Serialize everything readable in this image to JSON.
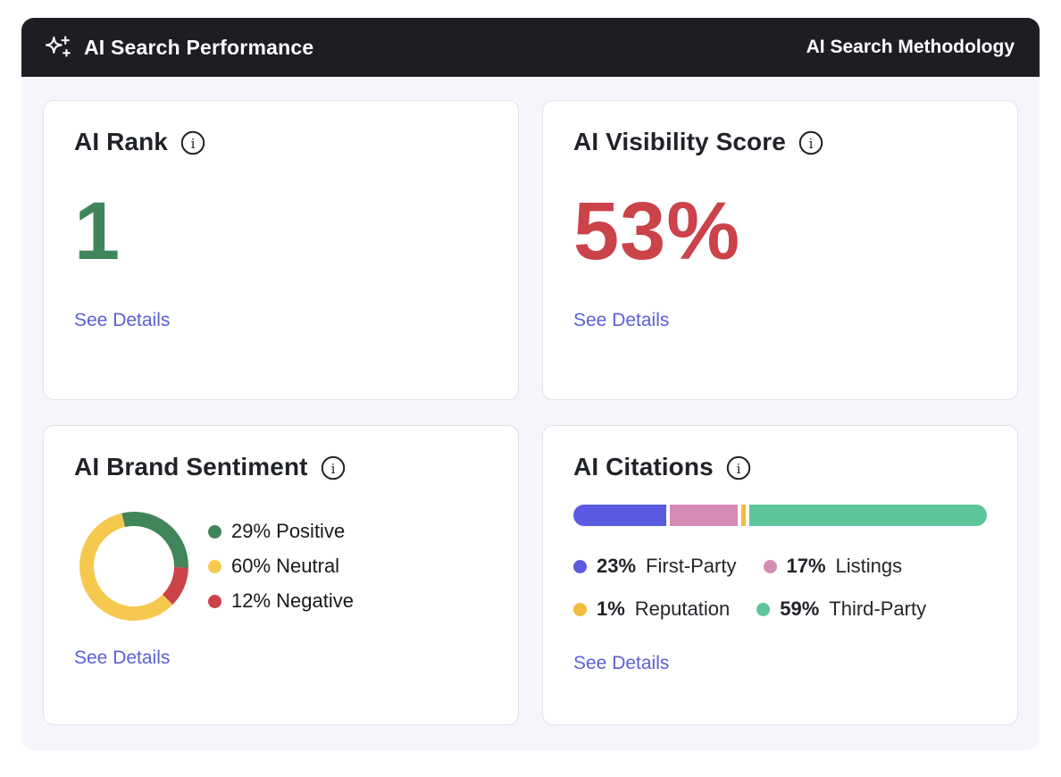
{
  "header": {
    "title": "AI Search Performance",
    "methodology_link": "AI Search Methodology"
  },
  "cards": {
    "ai_rank": {
      "title": "AI Rank",
      "value": "1",
      "value_color": "#41855a",
      "details_label": "See Details"
    },
    "ai_visibility": {
      "title": "AI Visibility Score",
      "value": "53%",
      "value_color": "#cb4249",
      "details_label": "See Details"
    },
    "ai_sentiment": {
      "title": "AI Brand Sentiment",
      "details_label": "See Details"
    },
    "ai_citations": {
      "title": "AI Citations",
      "details_label": "See Details"
    }
  },
  "chart_data": [
    {
      "type": "pie",
      "variant": "donut",
      "title": "AI Brand Sentiment",
      "start_angle_deg": -13,
      "legend_position": "right",
      "segments": [
        {
          "label": "Positive",
          "value": 29,
          "color": "#41855a"
        },
        {
          "label": "Neutral",
          "value": 60,
          "color": "#f6c94e"
        },
        {
          "label": "Negative",
          "value": 12,
          "color": "#cb4249"
        }
      ],
      "draw_order": [
        "Positive",
        "Negative",
        "Neutral"
      ]
    },
    {
      "type": "bar",
      "variant": "horizontal-stacked",
      "title": "AI Citations",
      "segments": [
        {
          "label": "First-Party",
          "value": 23,
          "color": "#5b5be1"
        },
        {
          "label": "Listings",
          "value": 17,
          "color": "#d58ab4"
        },
        {
          "label": "Reputation",
          "value": 1,
          "color": "#f0bc3d"
        },
        {
          "label": "Third-Party",
          "value": 59,
          "color": "#5ec49a"
        }
      ],
      "legend_rows": [
        [
          "First-Party",
          "Listings"
        ],
        [
          "Reputation",
          "Third-Party"
        ]
      ]
    }
  ],
  "colors": {
    "header_bg": "#1c1e24",
    "panel_bg": "#f5f6fb",
    "card_border": "#e2e4ea",
    "link": "#5c5fd6",
    "title_text": "#1f2227"
  }
}
